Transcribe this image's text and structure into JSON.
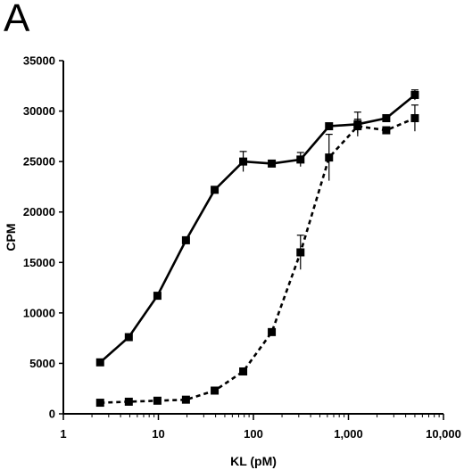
{
  "panel_label": "A",
  "chart_data": {
    "type": "line",
    "xlabel": "KL (pM)",
    "ylabel": "CPM",
    "xscale": "log",
    "xlim": [
      1,
      10000
    ],
    "ylim": [
      0,
      35000
    ],
    "xticks": [
      1,
      10,
      100,
      1000,
      10000
    ],
    "xtick_labels": [
      "1",
      "10",
      "100",
      "1,000",
      "10,000"
    ],
    "yticks": [
      0,
      5000,
      10000,
      15000,
      20000,
      25000,
      30000,
      35000
    ],
    "ytick_labels": [
      "0",
      "5000",
      "10000",
      "15000",
      "20000",
      "25000",
      "30000",
      "35000"
    ],
    "grid": false,
    "series": [
      {
        "line_style": "solid",
        "color": "#000000",
        "marker": "square",
        "x": [
          2.44,
          4.88,
          9.77,
          19.5,
          39.1,
          78.1,
          156,
          313,
          625,
          1250,
          2500,
          5000
        ],
        "y": [
          5100,
          7600,
          11700,
          17200,
          22200,
          25000,
          24800,
          25200,
          28500,
          28700,
          29300,
          31600
        ],
        "err": [
          0,
          0,
          300,
          0,
          0,
          1000,
          0,
          700,
          0,
          1200,
          0,
          500
        ]
      },
      {
        "line_style": "dashed",
        "color": "#000000",
        "marker": "square",
        "x": [
          2.44,
          4.88,
          9.77,
          19.5,
          39.1,
          78.1,
          156,
          313,
          625,
          1250,
          2500,
          5000
        ],
        "y": [
          1100,
          1200,
          1300,
          1400,
          2300,
          4200,
          8100,
          16000,
          25400,
          28500,
          28100,
          29300
        ],
        "err": [
          0,
          0,
          0,
          0,
          0,
          0,
          0,
          1700,
          2300,
          700,
          0,
          1300
        ]
      }
    ]
  }
}
